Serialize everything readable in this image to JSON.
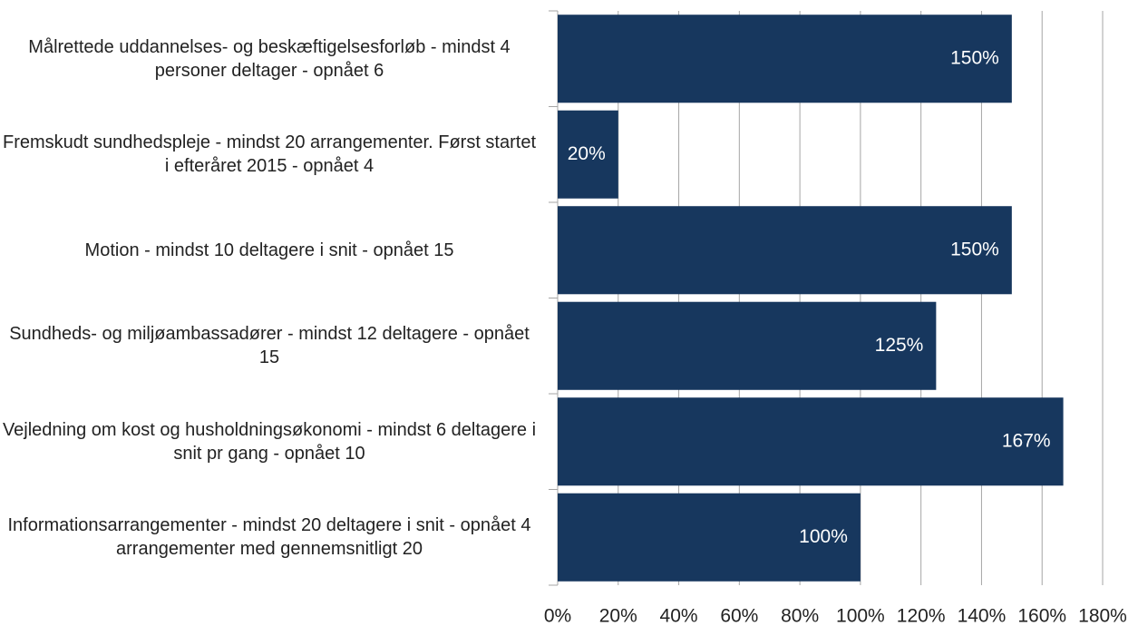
{
  "chart_data": {
    "type": "barh",
    "categories": [
      "Målrettede uddannelses- og beskæftigelsesforløb - mindst 4 personer deltager - opnået 6",
      "Fremskudt sundhedspleje - mindst 20 arrangementer. Først startet i efteråret 2015 - opnået 4",
      "Motion - mindst 10 deltagere i snit - opnået 15",
      "Sundheds- og miljøambassadører - mindst 12 deltagere - opnået 15",
      "Vejledning om kost og husholdningsøkonomi - mindst 6 deltagere i snit pr gang - opnået 10",
      "Informationsarrangementer - mindst 20 deltagere i snit - opnået 4 arrangementer med gennemsnitligt 20"
    ],
    "values": [
      150,
      20,
      150,
      125,
      167,
      100
    ],
    "value_labels": [
      "150%",
      "20%",
      "150%",
      "125%",
      "167%",
      "100%"
    ],
    "color": "#17375e",
    "xlim": [
      0,
      180
    ],
    "xticks": [
      {
        "value": 0,
        "label": "0%"
      },
      {
        "value": 20,
        "label": "20%"
      },
      {
        "value": 40,
        "label": "40%"
      },
      {
        "value": 60,
        "label": "60%"
      },
      {
        "value": 80,
        "label": "80%"
      },
      {
        "value": 100,
        "label": "100%"
      },
      {
        "value": 120,
        "label": "120%"
      },
      {
        "value": 140,
        "label": "140%"
      },
      {
        "value": 160,
        "label": "160%"
      },
      {
        "value": 180,
        "label": "180%"
      }
    ],
    "grid": true
  }
}
